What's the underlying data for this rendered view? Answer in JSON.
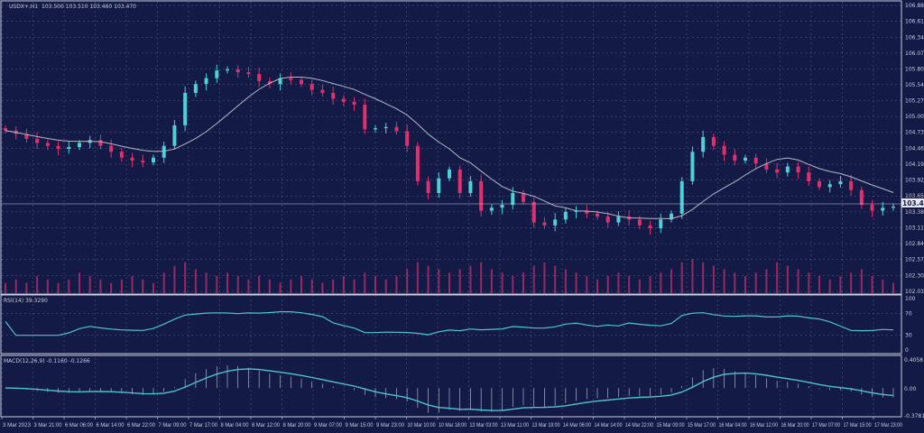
{
  "header": {
    "symbol": "USDX+,H1",
    "ohlc": "103.500 103.510 103.460 103.470"
  },
  "colors": {
    "background": "#131a45",
    "bull": "#4fd0d8",
    "bear": "#e0306e",
    "ma": "#b8b8c8",
    "volume": "#c0306e",
    "rsi": "#4fc3d0",
    "macd_line": "#4fc3d0",
    "grid": "#8890b8"
  },
  "chart_data": [
    {
      "type": "candlestick",
      "title": "USDX+,H1 103.500 103.510 103.460 103.470",
      "ylim": [
        102.03,
        106.885
      ],
      "grid": true,
      "y_ticks": [
        "106.885",
        "106.615",
        "106.345",
        "106.075",
        "105.805",
        "105.540",
        "105.270",
        "105.000",
        "104.730",
        "104.460",
        "104.190",
        "103.920",
        "103.650",
        "103.380",
        "103.110",
        "102.840",
        "102.570",
        "102.300",
        "102.030"
      ],
      "current_price": "103.470",
      "closes": [
        104.76,
        104.7,
        104.62,
        104.55,
        104.5,
        104.45,
        104.48,
        104.55,
        104.6,
        104.5,
        104.4,
        104.3,
        104.25,
        104.22,
        104.3,
        104.5,
        104.85,
        105.4,
        105.55,
        105.65,
        105.78,
        105.8,
        105.75,
        105.72,
        105.6,
        105.55,
        105.65,
        105.62,
        105.55,
        105.45,
        105.4,
        105.3,
        105.25,
        105.2,
        104.78,
        104.8,
        104.82,
        104.75,
        104.5,
        103.9,
        103.7,
        103.95,
        104.1,
        103.7,
        103.9,
        103.4,
        103.45,
        103.5,
        103.7,
        103.55,
        103.2,
        103.15,
        103.25,
        103.38,
        103.4,
        103.35,
        103.3,
        103.2,
        103.3,
        103.25,
        103.15,
        103.1,
        103.25,
        103.35,
        103.9,
        104.4,
        104.65,
        104.5,
        104.35,
        104.25,
        104.3,
        104.2,
        104.1,
        104.05,
        104.15,
        104.05,
        103.9,
        103.8,
        103.85,
        103.9,
        103.75,
        103.5,
        103.4,
        103.45,
        103.47
      ],
      "volumes": [
        3,
        4,
        3,
        5,
        4,
        3,
        4,
        6,
        5,
        4,
        3,
        4,
        5,
        4,
        3,
        6,
        8,
        9,
        7,
        6,
        5,
        6,
        5,
        4,
        5,
        4,
        3,
        4,
        5,
        4,
        3,
        4,
        5,
        4,
        6,
        5,
        4,
        5,
        7,
        9,
        8,
        7,
        6,
        7,
        8,
        9,
        7,
        6,
        5,
        6,
        8,
        9,
        8,
        7,
        6,
        5,
        4,
        5,
        6,
        5,
        4,
        5,
        6,
        7,
        9,
        10,
        9,
        8,
        7,
        6,
        5,
        6,
        7,
        9,
        8,
        7,
        6,
        5,
        4,
        5,
        6,
        7,
        5,
        4,
        3
      ],
      "moving_average": "line"
    },
    {
      "type": "line",
      "title": "RSI(14) 39.3290",
      "ylim": [
        0,
        100
      ],
      "y_ticks": [
        "100",
        "70",
        "30",
        "0"
      ]
    },
    {
      "type": "bar+line",
      "title": "MACD(12,26,9) -0.1160 -0.1266",
      "ylim": [
        -0.3781,
        0.4058
      ],
      "y_ticks": [
        "0.4058",
        "0.00",
        "-0.3781"
      ]
    }
  ],
  "x_ticks": [
    "3 Mar 2023",
    "3 Mar 21:00",
    "6 Mar 06:00",
    "6 Mar 14:00",
    "6 Mar 22:00",
    "7 Mar 09:00",
    "7 Mar 17:00",
    "8 Mar 04:00",
    "8 Mar 12:00",
    "8 Mar 20:00",
    "9 Mar 07:00",
    "9 Mar 15:00",
    "9 Mar 23:00",
    "10 Mar 10:00",
    "10 Mar 18:00",
    "13 Mar 03:00",
    "13 Mar 11:00",
    "13 Mar 19:00",
    "14 Mar 06:00",
    "14 Mar 14:00",
    "14 Mar 22:00",
    "15 Mar 09:00",
    "15 Mar 17:00",
    "16 Mar 04:00",
    "16 Mar 12:00",
    "16 Mar 20:00",
    "17 Mar 07:00",
    "17 Mar 15:00",
    "17 Mar 23:00"
  ]
}
